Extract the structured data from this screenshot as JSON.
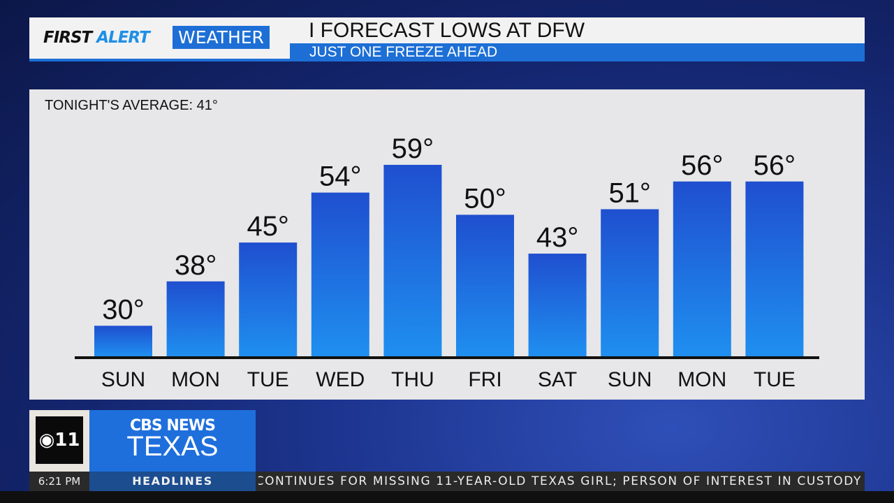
{
  "header": {
    "brand_first": "FIRST",
    "brand_alert": "ALERT",
    "brand_weather": "WEATHER",
    "title": "I FORECAST LOWS AT DFW",
    "subtitle": "JUST ONE FREEZE AHEAD"
  },
  "chart_data": {
    "type": "bar",
    "title": "FORECAST LOWS AT DFW",
    "annotation": "TONIGHT'S AVERAGE: 41°",
    "categories": [
      "SUN",
      "MON",
      "TUE",
      "WED",
      "THU",
      "FRI",
      "SAT",
      "SUN",
      "MON",
      "TUE"
    ],
    "values": [
      30,
      38,
      45,
      54,
      59,
      50,
      43,
      51,
      56,
      56
    ],
    "value_labels": [
      "30°",
      "38°",
      "45°",
      "54°",
      "59°",
      "50°",
      "43°",
      "51°",
      "56°",
      "56°"
    ],
    "unit": "°F",
    "ylim": [
      24.5,
      60
    ],
    "grid": false,
    "bar_color_top": "#1f4fcf",
    "bar_color_bottom": "#1f8ff0"
  },
  "network": {
    "logo": "CBS 11",
    "name_line1": "CBS NEWS",
    "name_line2": "TEXAS"
  },
  "ticker": {
    "time": "6:21 PM",
    "section": "HEADLINES",
    "text": "CONTINUES FOR MISSING 11-YEAR-OLD TEXAS GIRL; PERSON OF INTEREST IN CUSTODY"
  }
}
